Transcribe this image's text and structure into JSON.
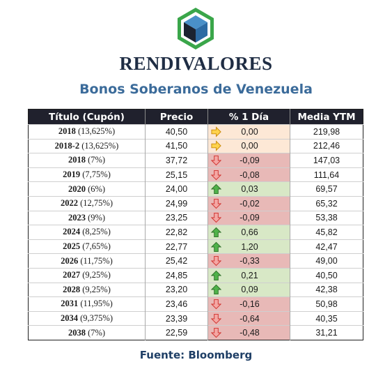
{
  "brand": "RENDIVALORES",
  "subtitle": "Bonos Soberanos de Venezuela",
  "source": "Fuente: Bloomberg",
  "colors": {
    "up": "#d8e8c6",
    "down": "#e8b9b7",
    "flat": "#fde8d6",
    "header": "#20212d"
  },
  "table": {
    "headers": [
      "Título (Cupón)",
      "Precio",
      "% 1 Día",
      "Media YTM"
    ],
    "rows": [
      {
        "year": "2018",
        "coupon": " (13,625%)",
        "price": "40,50",
        "change": "0,00",
        "trend": "flat",
        "ytm": "219,98"
      },
      {
        "year": "2018-2",
        "coupon": " (13,625%)",
        "price": "41,50",
        "change": "0,00",
        "trend": "flat",
        "ytm": "212,46"
      },
      {
        "year": "2018",
        "coupon": " (7%)",
        "price": "37,72",
        "change": "-0,09",
        "trend": "down",
        "ytm": "147,03"
      },
      {
        "year": "2019",
        "coupon": " (7,75%)",
        "price": "25,15",
        "change": "-0,08",
        "trend": "down",
        "ytm": "111,64"
      },
      {
        "year": "2020",
        "coupon": " (6%)",
        "price": "24,00",
        "change": "0,03",
        "trend": "up",
        "ytm": "69,57"
      },
      {
        "year": "2022",
        "coupon": " (12,75%)",
        "price": "24,99",
        "change": "-0,02",
        "trend": "down",
        "ytm": "65,32"
      },
      {
        "year": "2023",
        "coupon": " (9%)",
        "price": "23,25",
        "change": "-0,09",
        "trend": "down",
        "ytm": "53,38"
      },
      {
        "year": "2024",
        "coupon": " (8,25%)",
        "price": "22,82",
        "change": "0,66",
        "trend": "up",
        "ytm": "45,82"
      },
      {
        "year": "2025",
        "coupon": " (7,65%)",
        "price": "22,77",
        "change": "1,20",
        "trend": "up",
        "ytm": "42,47"
      },
      {
        "year": "2026",
        "coupon": " (11,75%)",
        "price": "25,42",
        "change": "-0,33",
        "trend": "down",
        "ytm": "49,00"
      },
      {
        "year": "2027",
        "coupon": " (9,25%)",
        "price": "24,85",
        "change": "0,21",
        "trend": "up",
        "ytm": "40,50"
      },
      {
        "year": "2028",
        "coupon": " (9,25%)",
        "price": "23,20",
        "change": "0,09",
        "trend": "up",
        "ytm": "42,38"
      },
      {
        "year": "2031",
        "coupon": " (11,95%)",
        "price": "23,46",
        "change": "-0,16",
        "trend": "down",
        "ytm": "50,98"
      },
      {
        "year": "2034",
        "coupon": " (9,375%)",
        "price": "23,39",
        "change": "-0,64",
        "trend": "down",
        "ytm": "40,35"
      },
      {
        "year": "2038",
        "coupon": " (7%)",
        "price": "22,59",
        "change": "-0,48",
        "trend": "down",
        "ytm": "31,21"
      }
    ]
  }
}
